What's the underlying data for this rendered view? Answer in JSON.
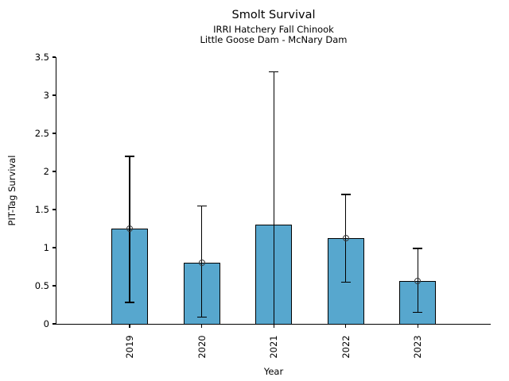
{
  "chart_data": {
    "type": "bar",
    "title": "Smolt Survival",
    "subtitle1": "IRRI Hatchery Fall Chinook",
    "subtitle2": "Little Goose Dam - McNary Dam",
    "xlabel": "Year",
    "ylabel": "PIT-Tag Survival",
    "categories": [
      "2019",
      "2020",
      "2021",
      "2022",
      "2023"
    ],
    "values": [
      1.25,
      0.8,
      1.3,
      1.12,
      0.56
    ],
    "error_low": [
      0.28,
      0.09,
      0.0,
      0.55,
      0.15
    ],
    "error_high": [
      2.2,
      1.55,
      3.31,
      1.7,
      0.99
    ],
    "marker_shown": [
      true,
      true,
      false,
      true,
      true
    ],
    "lower_cap_shown": [
      true,
      true,
      false,
      true,
      true
    ],
    "ylim": [
      0,
      3.5
    ],
    "ytick_labels": [
      "0",
      "0.5",
      "1",
      "1.5",
      "2",
      "2.5",
      "3",
      "3.5"
    ],
    "grid": false,
    "legend": "none",
    "bar_color": "#57A7CE",
    "bar_edge_color": "#000000",
    "marker_edge_color": "#3a3a3a"
  }
}
